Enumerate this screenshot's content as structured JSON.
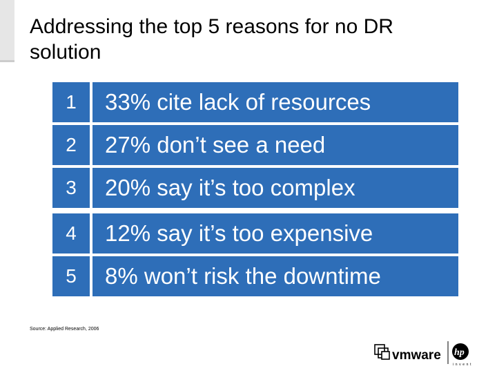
{
  "slide": {
    "title": "Addressing the top 5 reasons for no DR solution",
    "reasons": [
      {
        "number": "1",
        "text": "33% cite lack of resources"
      },
      {
        "number": "2",
        "text": "27% don’t see a need"
      },
      {
        "number": "3",
        "text": "20% say it’s too complex"
      },
      {
        "number": "4",
        "text": "12% say it’s too expensive"
      },
      {
        "number": "5",
        "text": "8% won’t risk the downtime"
      }
    ],
    "source": "Source: Applied Research, 2006",
    "logos": {
      "vmware": "vmware",
      "hp": "hp",
      "hp_tagline": "invent"
    },
    "colors": {
      "accent": "#2e6eb8"
    }
  }
}
